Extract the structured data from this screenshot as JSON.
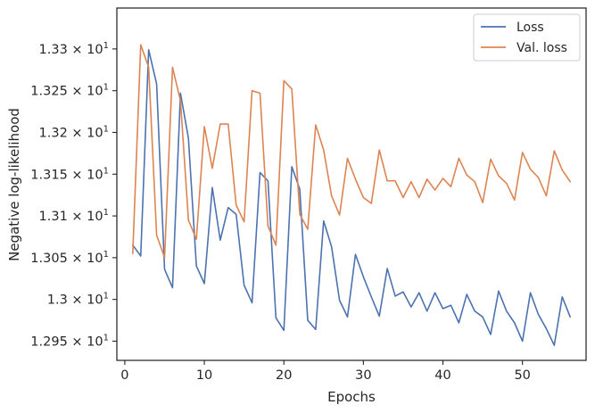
{
  "chart_data": {
    "type": "line",
    "xlabel": "Epochs",
    "ylabel": "Negative log-likelihood",
    "xlim": [
      -1,
      58
    ],
    "ylim": [
      12.927,
      13.349
    ],
    "xticks": [
      0,
      10,
      20,
      30,
      40,
      50
    ],
    "xtick_labels": [
      "0",
      "10",
      "20",
      "30",
      "40",
      "50"
    ],
    "yticks": [
      12.95,
      13.0,
      13.05,
      13.1,
      13.15,
      13.2,
      13.25,
      13.3
    ],
    "ytick_labels": [
      {
        "mant": "1.295",
        "exp": "1"
      },
      {
        "mant": "1.3",
        "exp": "1"
      },
      {
        "mant": "1.305",
        "exp": "1"
      },
      {
        "mant": "1.31",
        "exp": "1"
      },
      {
        "mant": "1.315",
        "exp": "1"
      },
      {
        "mant": "1.32",
        "exp": "1"
      },
      {
        "mant": "1.325",
        "exp": "1"
      },
      {
        "mant": "1.33",
        "exp": "1"
      }
    ],
    "grid": false,
    "legend_position": "top-right",
    "x": [
      1,
      2,
      3,
      4,
      5,
      6,
      7,
      8,
      9,
      10,
      11,
      12,
      13,
      14,
      15,
      16,
      17,
      18,
      19,
      20,
      21,
      22,
      23,
      24,
      25,
      26,
      27,
      28,
      29,
      30,
      31,
      32,
      33,
      34,
      35,
      36,
      37,
      38,
      39,
      40,
      41,
      42,
      43,
      44,
      45,
      46,
      47,
      48,
      49,
      50,
      51,
      52,
      53,
      54,
      55,
      56
    ],
    "series": [
      {
        "name": "Loss",
        "color": "#4c72b0",
        "values": [
          13.065,
          13.052,
          13.299,
          13.258,
          13.036,
          13.014,
          13.247,
          13.193,
          13.04,
          13.019,
          13.134,
          13.071,
          13.11,
          13.102,
          13.017,
          12.996,
          13.152,
          13.142,
          12.978,
          12.963,
          13.159,
          13.132,
          12.975,
          12.964,
          13.094,
          13.063,
          12.999,
          12.979,
          13.054,
          13.027,
          13.003,
          12.98,
          13.037,
          13.004,
          13.009,
          12.991,
          13.008,
          12.986,
          13.008,
          12.989,
          12.993,
          12.972,
          13.006,
          12.986,
          12.979,
          12.958,
          13.01,
          12.986,
          12.972,
          12.95,
          13.008,
          12.982,
          12.965,
          12.945,
          13.003,
          12.979
        ]
      },
      {
        "name": "Val. loss",
        "color": "#dd8452",
        "values": [
          13.055,
          13.305,
          13.278,
          13.077,
          13.05,
          13.278,
          13.238,
          13.095,
          13.072,
          13.207,
          13.157,
          13.21,
          13.21,
          13.113,
          13.093,
          13.25,
          13.247,
          13.088,
          13.065,
          13.262,
          13.252,
          13.102,
          13.084,
          13.209,
          13.179,
          13.124,
          13.101,
          13.169,
          13.144,
          13.122,
          13.115,
          13.179,
          13.142,
          13.142,
          13.122,
          13.141,
          13.122,
          13.144,
          13.131,
          13.145,
          13.135,
          13.169,
          13.149,
          13.141,
          13.116,
          13.168,
          13.148,
          13.139,
          13.119,
          13.176,
          13.156,
          13.146,
          13.124,
          13.178,
          13.155,
          13.141
        ]
      }
    ]
  }
}
